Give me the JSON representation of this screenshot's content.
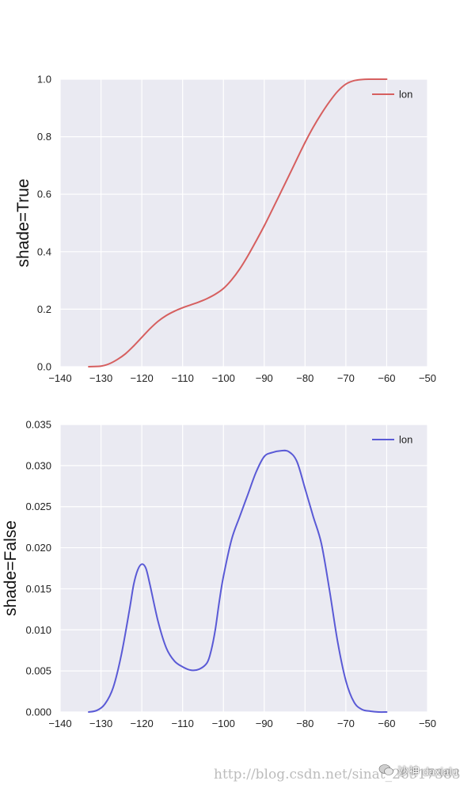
{
  "chart_data": [
    {
      "type": "line",
      "ylabel": "shade=True",
      "xlim": [
        -140,
        -50
      ],
      "ylim": [
        0,
        1.0
      ],
      "xticks": [
        "−140",
        "−130",
        "−120",
        "−110",
        "−100",
        "−90",
        "−80",
        "−70",
        "−60",
        "−50"
      ],
      "yticks": [
        "0.0",
        "0.2",
        "0.4",
        "0.6",
        "0.8",
        "1.0"
      ],
      "grid": true,
      "legend_position": "top-right",
      "series": [
        {
          "name": "lon",
          "color": "#d65f5f",
          "x": [
            -133,
            -130,
            -128,
            -126,
            -124,
            -122,
            -120,
            -118,
            -116,
            -114,
            -112,
            -110,
            -108,
            -106,
            -104,
            -102,
            -100,
            -98,
            -96,
            -94,
            -92,
            -90,
            -88,
            -86,
            -84,
            -82,
            -80,
            -78,
            -76,
            -74,
            -72,
            -70,
            -68,
            -66,
            -64,
            -62,
            -60
          ],
          "y": [
            0.0,
            0.002,
            0.01,
            0.025,
            0.045,
            0.072,
            0.102,
            0.132,
            0.158,
            0.178,
            0.193,
            0.205,
            0.215,
            0.225,
            0.237,
            0.252,
            0.272,
            0.302,
            0.34,
            0.386,
            0.437,
            0.49,
            0.547,
            0.605,
            0.663,
            0.722,
            0.78,
            0.833,
            0.88,
            0.922,
            0.958,
            0.983,
            0.995,
            0.999,
            1.0,
            1.0,
            1.0
          ]
        }
      ]
    },
    {
      "type": "line",
      "ylabel": "shade=False",
      "xlim": [
        -140,
        -50
      ],
      "ylim": [
        0,
        0.035
      ],
      "xticks": [
        "−140",
        "−130",
        "−120",
        "−110",
        "−100",
        "−90",
        "−80",
        "−70",
        "−60",
        "−50"
      ],
      "yticks": [
        "0.000",
        "0.005",
        "0.010",
        "0.015",
        "0.020",
        "0.025",
        "0.030",
        "0.035"
      ],
      "grid": true,
      "legend_position": "top-right",
      "series": [
        {
          "name": "lon",
          "color": "#5a5ad6",
          "x": [
            -133,
            -131,
            -129,
            -127,
            -125,
            -123,
            -122,
            -121,
            -120,
            -119,
            -118,
            -116,
            -114,
            -112,
            -110,
            -108,
            -106,
            -104,
            -103,
            -102,
            -101,
            -100,
            -98,
            -96,
            -94,
            -92,
            -90,
            -88,
            -86,
            -84,
            -82,
            -80,
            -78,
            -76,
            -74,
            -72,
            -70,
            -68,
            -66,
            -64,
            -62,
            -60
          ],
          "y": [
            0.0,
            0.0002,
            0.001,
            0.003,
            0.007,
            0.0125,
            0.0155,
            0.0173,
            0.018,
            0.0175,
            0.0155,
            0.011,
            0.0078,
            0.0062,
            0.0055,
            0.0051,
            0.0052,
            0.006,
            0.0075,
            0.01,
            0.0135,
            0.0165,
            0.021,
            0.0238,
            0.0265,
            0.0292,
            0.0311,
            0.0316,
            0.0318,
            0.0317,
            0.0305,
            0.0272,
            0.0238,
            0.0205,
            0.0148,
            0.0085,
            0.0038,
            0.0012,
            0.0003,
            0.0001,
            0.0,
            0.0
          ]
        }
      ]
    }
  ],
  "watermark": {
    "url": "http://blog.csdn.net/sinat_26917383",
    "brand": "沙神 daxialu"
  }
}
